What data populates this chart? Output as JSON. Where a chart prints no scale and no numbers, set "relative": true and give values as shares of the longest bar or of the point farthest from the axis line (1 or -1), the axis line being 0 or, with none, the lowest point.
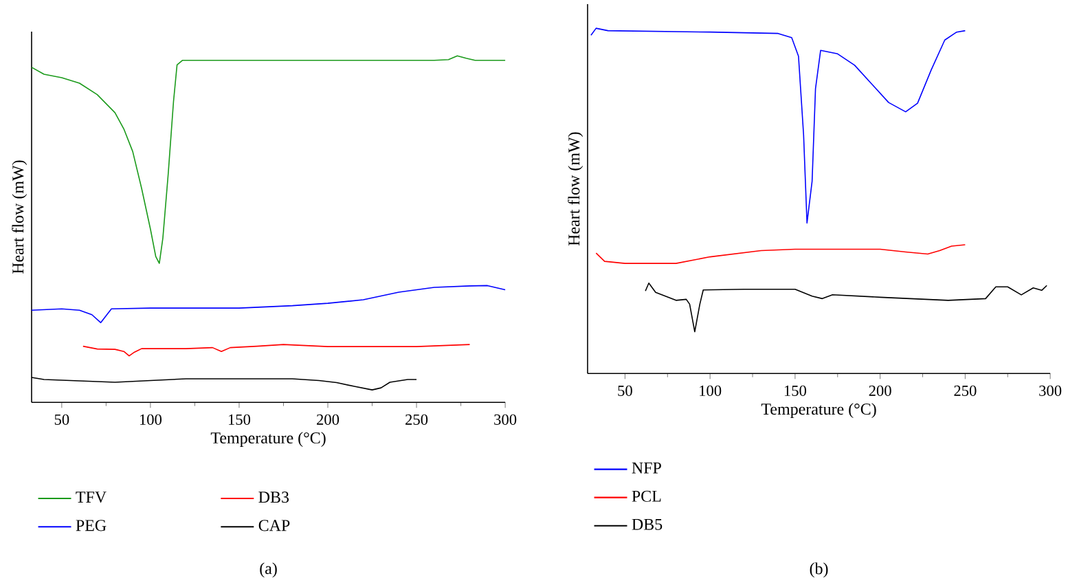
{
  "chart_data": [
    {
      "type": "line",
      "relative": true,
      "xlabel": "Temperature (°C)",
      "ylabel": "Heart flow (mW)",
      "xlim": [
        33,
        300
      ],
      "xticks": [
        50,
        {
          "value": 75,
          "label": null
        },
        100,
        {
          "value": 125,
          "label": null
        },
        150,
        {
          "value": 175,
          "label": null
        },
        200,
        {
          "value": 225,
          "label": null
        },
        250,
        {
          "value": 275,
          "label": null
        },
        300
      ],
      "legend": "bottom",
      "annotations": [
        "(a)"
      ],
      "series": [
        {
          "name": "TFV",
          "color": "#1a9a1a",
          "x": [
            33,
            40,
            50,
            60,
            70,
            80,
            85,
            90,
            95,
            100,
            103,
            105,
            107,
            110,
            113,
            115,
            118,
            150,
            200,
            260,
            268,
            273,
            278,
            283,
            300
          ],
          "values": [
            0.967,
            0.947,
            0.937,
            0.921,
            0.888,
            0.836,
            0.789,
            0.724,
            0.618,
            0.5,
            0.421,
            0.401,
            0.474,
            0.658,
            0.868,
            0.974,
            0.987,
            0.987,
            0.987,
            0.987,
            0.989,
            1.0,
            0.993,
            0.987,
            0.987
          ]
        },
        {
          "name": "PEG",
          "color": "#0000ff",
          "x": [
            33,
            50,
            60,
            67,
            72,
            75,
            78,
            100,
            150,
            180,
            200,
            220,
            240,
            260,
            280,
            290,
            300
          ],
          "values": [
            0.266,
            0.27,
            0.266,
            0.253,
            0.23,
            0.25,
            0.27,
            0.272,
            0.272,
            0.279,
            0.286,
            0.296,
            0.318,
            0.332,
            0.336,
            0.337,
            0.325
          ]
        },
        {
          "name": "DB3",
          "color": "#ff0000",
          "x": [
            62,
            70,
            80,
            85,
            88,
            91,
            95,
            120,
            135,
            140,
            145,
            160,
            175,
            200,
            250,
            280
          ],
          "values": [
            0.162,
            0.154,
            0.153,
            0.147,
            0.134,
            0.145,
            0.155,
            0.155,
            0.158,
            0.147,
            0.158,
            0.162,
            0.167,
            0.161,
            0.161,
            0.167
          ]
        },
        {
          "name": "CAP",
          "color": "#000000",
          "x": [
            33,
            40,
            60,
            80,
            100,
            120,
            150,
            180,
            195,
            205,
            215,
            225,
            230,
            235,
            245,
            250
          ],
          "values": [
            0.072,
            0.066,
            0.062,
            0.058,
            0.063,
            0.068,
            0.068,
            0.068,
            0.063,
            0.057,
            0.046,
            0.036,
            0.042,
            0.058,
            0.066,
            0.066
          ]
        }
      ]
    },
    {
      "type": "line",
      "relative": true,
      "xlabel": "Temperature (°C)",
      "ylabel": "Heart flow (mW)",
      "xlim": [
        28,
        300
      ],
      "xticks": [
        50,
        {
          "value": 75,
          "label": null
        },
        100,
        {
          "value": 125,
          "label": null
        },
        150,
        {
          "value": 175,
          "label": null
        },
        200,
        {
          "value": 225,
          "label": null
        },
        250,
        {
          "value": 275,
          "label": null
        },
        300
      ],
      "legend": "bottom",
      "annotations": [
        "(b)"
      ],
      "series": [
        {
          "name": "NFP",
          "color": "#0000ff",
          "x": [
            30,
            33,
            40,
            100,
            140,
            148,
            152,
            155,
            157,
            160,
            162,
            165,
            175,
            185,
            195,
            205,
            215,
            222,
            230,
            238,
            245,
            250
          ],
          "values": [
            0.98,
            1.0,
            0.993,
            0.989,
            0.985,
            0.973,
            0.919,
            0.691,
            0.436,
            0.557,
            0.825,
            0.936,
            0.926,
            0.893,
            0.839,
            0.785,
            0.758,
            0.783,
            0.879,
            0.966,
            0.989,
            0.993
          ]
        },
        {
          "name": "PCL",
          "color": "#ff0000",
          "x": [
            33,
            38,
            50,
            80,
            100,
            130,
            150,
            200,
            215,
            228,
            235,
            242,
            250
          ],
          "values": [
            0.349,
            0.325,
            0.319,
            0.319,
            0.338,
            0.356,
            0.36,
            0.36,
            0.352,
            0.346,
            0.356,
            0.369,
            0.373
          ]
        },
        {
          "name": "DB5",
          "color": "#000000",
          "x": [
            62,
            64,
            68,
            80,
            86,
            88,
            91,
            94,
            96,
            120,
            150,
            160,
            166,
            172,
            200,
            240,
            262,
            268,
            275,
            283,
            290,
            295,
            298
          ],
          "values": [
            0.239,
            0.262,
            0.235,
            0.212,
            0.215,
            0.201,
            0.121,
            0.201,
            0.242,
            0.244,
            0.244,
            0.224,
            0.217,
            0.228,
            0.221,
            0.212,
            0.217,
            0.251,
            0.251,
            0.228,
            0.248,
            0.241,
            0.255
          ]
        }
      ]
    }
  ]
}
